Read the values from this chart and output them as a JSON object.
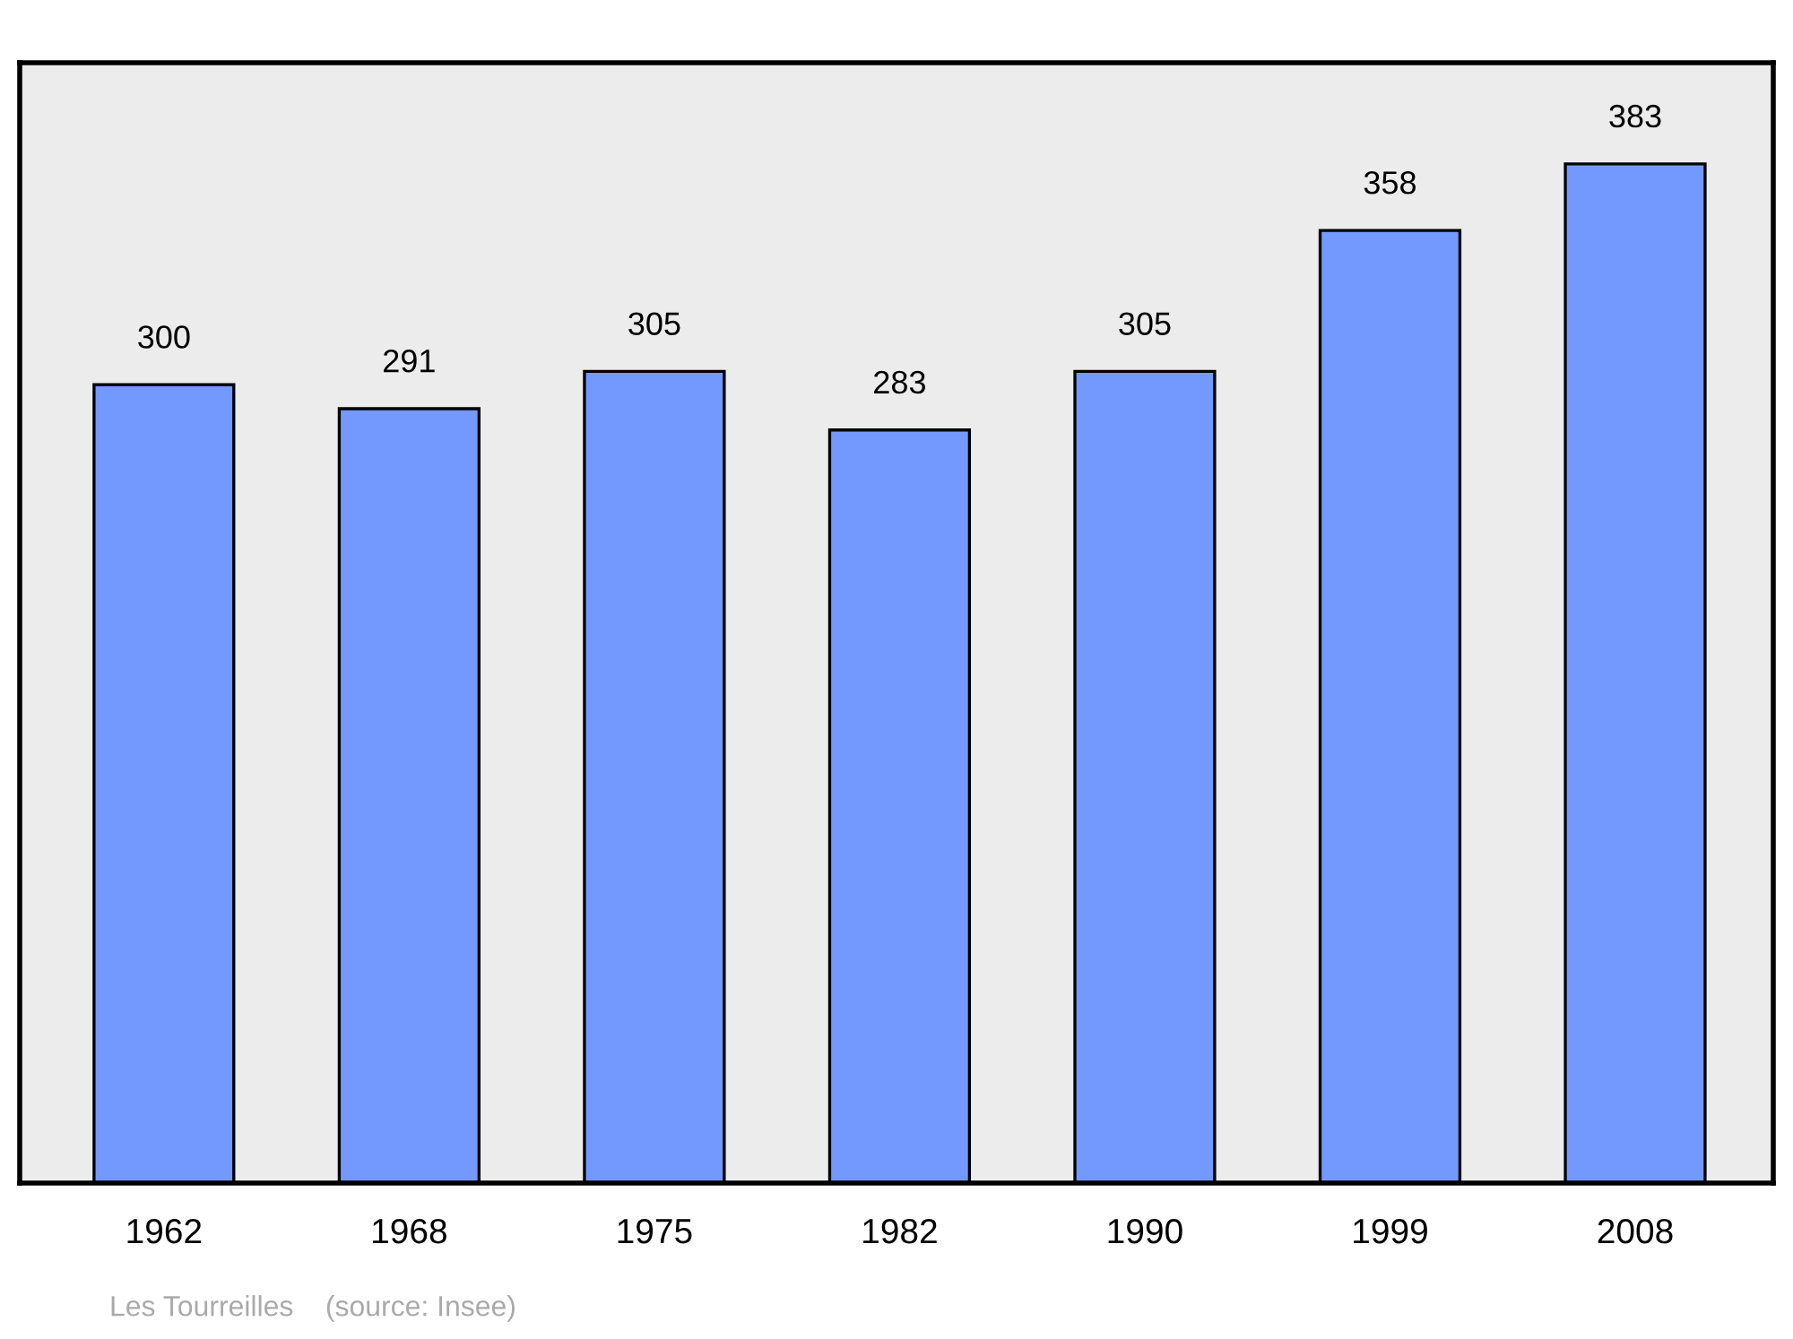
{
  "chart_data": {
    "type": "bar",
    "categories": [
      "1962",
      "1968",
      "1975",
      "1982",
      "1990",
      "1999",
      "2008"
    ],
    "values": [
      300,
      291,
      305,
      283,
      305,
      358,
      383
    ],
    "color": "#7399ff",
    "data_labels": true,
    "ylim": [
      0,
      421
    ],
    "tick_labels": "x",
    "grid": false,
    "annotations": [
      "Les Tourreilles    (source: Insee)"
    ]
  }
}
